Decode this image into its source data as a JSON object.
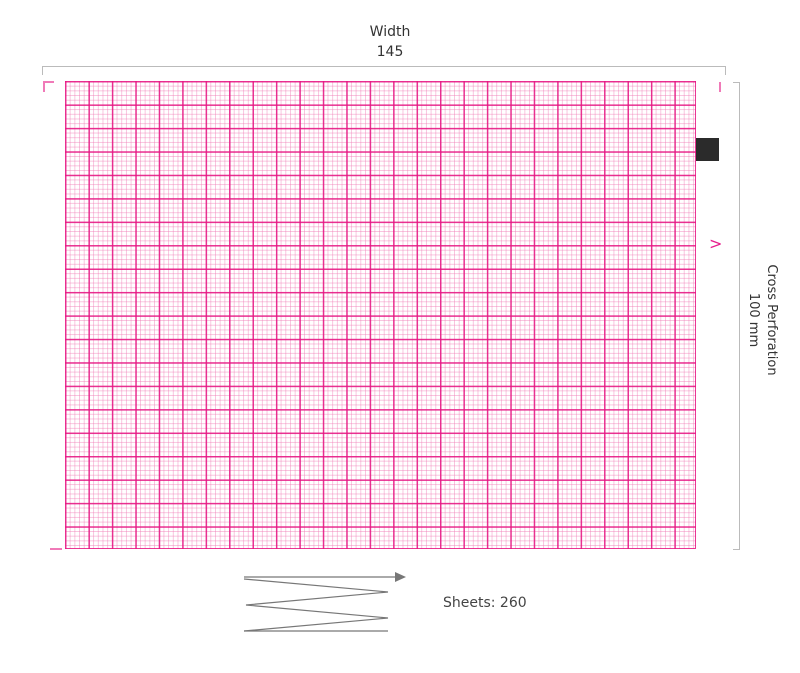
{
  "width": {
    "title": "Width",
    "value": "145"
  },
  "height": {
    "title": "Cross Perforation",
    "value": "100 mm"
  },
  "sheets": {
    "label": "Sheets: 260"
  },
  "colors": {
    "grid_major": "#e6148c",
    "grid_minor": "#f078b4",
    "sensor_mark": "#2b2b2b",
    "guides": "#bbbbbb"
  },
  "icons": {
    "fold": "zigzag-fanfold-icon",
    "direction": "chevron-right-icon"
  }
}
